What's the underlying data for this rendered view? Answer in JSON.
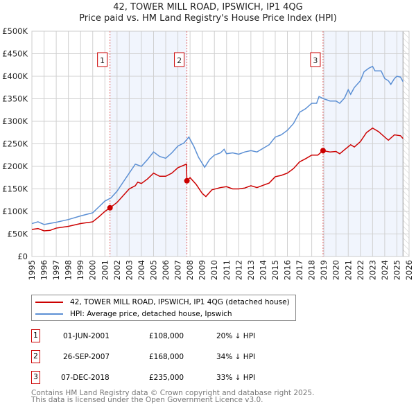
{
  "chart_data": {
    "type": "line",
    "title": "42, TOWER MILL ROAD, IPSWICH, IP1 4QG",
    "subtitle": "Price paid vs. HM Land Registry's House Price Index (HPI)",
    "xlim": [
      1995,
      2026
    ],
    "ylim": [
      0,
      500000
    ],
    "x_ticks": [
      "1995",
      "1996",
      "1997",
      "1998",
      "1999",
      "2000",
      "2001",
      "2002",
      "2003",
      "2004",
      "2005",
      "2006",
      "2007",
      "2008",
      "2009",
      "2010",
      "2011",
      "2012",
      "2013",
      "2014",
      "2015",
      "2016",
      "2017",
      "2018",
      "2019",
      "2020",
      "2021",
      "2022",
      "2023",
      "2024",
      "2025",
      "2026"
    ],
    "y_ticks": [
      {
        "v": 0,
        "label": "£0"
      },
      {
        "v": 50000,
        "label": "£50K"
      },
      {
        "v": 100000,
        "label": "£100K"
      },
      {
        "v": 150000,
        "label": "£150K"
      },
      {
        "v": 200000,
        "label": "£200K"
      },
      {
        "v": 250000,
        "label": "£250K"
      },
      {
        "v": 300000,
        "label": "£300K"
      },
      {
        "v": 350000,
        "label": "£350K"
      },
      {
        "v": 400000,
        "label": "£400K"
      },
      {
        "v": 450000,
        "label": "£450K"
      },
      {
        "v": 500000,
        "label": "£500K"
      }
    ],
    "grid": true,
    "series": [
      {
        "name": "42, TOWER MILL ROAD, IPSWICH, IP1 4QG (detached house)",
        "color": "#cc0000",
        "points": [
          [
            1995,
            60
          ],
          [
            1995.5,
            62
          ],
          [
            1996,
            57
          ],
          [
            1996.5,
            58
          ],
          [
            1997,
            63
          ],
          [
            1998,
            67
          ],
          [
            1999,
            73
          ],
          [
            2000,
            77
          ],
          [
            2000.5,
            88
          ],
          [
            2001,
            100
          ],
          [
            2001.42,
            108
          ],
          [
            2002,
            120
          ],
          [
            2002.5,
            135
          ],
          [
            2003,
            150
          ],
          [
            2003.5,
            157
          ],
          [
            2003.7,
            165
          ],
          [
            2004,
            162
          ],
          [
            2004.5,
            172
          ],
          [
            2005,
            185
          ],
          [
            2005.5,
            178
          ],
          [
            2006,
            178
          ],
          [
            2006.5,
            185
          ],
          [
            2007,
            197
          ],
          [
            2007.7,
            205
          ],
          [
            2007.74,
            168
          ],
          [
            2008,
            175
          ],
          [
            2008.5,
            160
          ],
          [
            2009,
            140
          ],
          [
            2009.3,
            133
          ],
          [
            2009.8,
            148
          ],
          [
            2010.5,
            153
          ],
          [
            2011,
            155
          ],
          [
            2011.5,
            150
          ],
          [
            2012,
            150
          ],
          [
            2012.5,
            152
          ],
          [
            2013,
            157
          ],
          [
            2013.5,
            153
          ],
          [
            2014,
            158
          ],
          [
            2014.5,
            163
          ],
          [
            2015,
            177
          ],
          [
            2015.5,
            180
          ],
          [
            2016,
            185
          ],
          [
            2016.5,
            195
          ],
          [
            2017,
            210
          ],
          [
            2017.5,
            217
          ],
          [
            2018,
            225
          ],
          [
            2018.5,
            225
          ],
          [
            2018.93,
            235
          ],
          [
            2019.5,
            232
          ],
          [
            2020,
            233
          ],
          [
            2020.3,
            228
          ],
          [
            2020.7,
            237
          ],
          [
            2021.2,
            248
          ],
          [
            2021.5,
            243
          ],
          [
            2022,
            255
          ],
          [
            2022.5,
            275
          ],
          [
            2023,
            285
          ],
          [
            2023.5,
            277
          ],
          [
            2024,
            265
          ],
          [
            2024.3,
            258
          ],
          [
            2024.8,
            270
          ],
          [
            2025.3,
            268
          ],
          [
            2025.5,
            262
          ]
        ]
      },
      {
        "name": "HPI: Average price, detached house, Ipswich",
        "color": "#5b8fd4",
        "points": [
          [
            1995,
            73
          ],
          [
            1995.5,
            77
          ],
          [
            1996,
            71
          ],
          [
            1997,
            76
          ],
          [
            1998,
            82
          ],
          [
            1999,
            90
          ],
          [
            2000,
            97
          ],
          [
            2000.5,
            110
          ],
          [
            2001,
            123
          ],
          [
            2001.5,
            130
          ],
          [
            2002,
            145
          ],
          [
            2002.5,
            165
          ],
          [
            2003,
            185
          ],
          [
            2003.5,
            205
          ],
          [
            2004,
            200
          ],
          [
            2004.5,
            215
          ],
          [
            2005,
            232
          ],
          [
            2005.5,
            222
          ],
          [
            2006,
            218
          ],
          [
            2006.5,
            230
          ],
          [
            2007,
            245
          ],
          [
            2007.5,
            252
          ],
          [
            2007.9,
            265
          ],
          [
            2008.3,
            245
          ],
          [
            2008.7,
            220
          ],
          [
            2009.2,
            198
          ],
          [
            2009.6,
            215
          ],
          [
            2010,
            225
          ],
          [
            2010.5,
            230
          ],
          [
            2010.8,
            238
          ],
          [
            2011,
            228
          ],
          [
            2011.5,
            230
          ],
          [
            2012,
            227
          ],
          [
            2012.5,
            232
          ],
          [
            2013,
            235
          ],
          [
            2013.5,
            232
          ],
          [
            2014,
            240
          ],
          [
            2014.5,
            248
          ],
          [
            2015,
            265
          ],
          [
            2015.5,
            270
          ],
          [
            2016,
            280
          ],
          [
            2016.5,
            295
          ],
          [
            2017,
            320
          ],
          [
            2017.5,
            328
          ],
          [
            2018,
            340
          ],
          [
            2018.4,
            340
          ],
          [
            2018.6,
            355
          ],
          [
            2019,
            350
          ],
          [
            2019.5,
            345
          ],
          [
            2020,
            345
          ],
          [
            2020.3,
            340
          ],
          [
            2020.7,
            352
          ],
          [
            2021,
            370
          ],
          [
            2021.2,
            360
          ],
          [
            2021.5,
            375
          ],
          [
            2022,
            390
          ],
          [
            2022.3,
            410
          ],
          [
            2022.7,
            418
          ],
          [
            2023,
            422
          ],
          [
            2023.2,
            412
          ],
          [
            2023.7,
            412
          ],
          [
            2024,
            395
          ],
          [
            2024.3,
            390
          ],
          [
            2024.5,
            382
          ],
          [
            2024.8,
            395
          ],
          [
            2025,
            400
          ],
          [
            2025.3,
            398
          ],
          [
            2025.5,
            388
          ]
        ]
      }
    ],
    "sales": [
      {
        "n": "1",
        "x": 2001.42,
        "y": 108
      },
      {
        "n": "2",
        "x": 2007.74,
        "y": 168
      },
      {
        "n": "3",
        "x": 2018.93,
        "y": 235
      }
    ],
    "shaded": [
      [
        2001.42,
        2007.74
      ],
      [
        2018.93,
        2025.5
      ]
    ],
    "data_end": 2025.5,
    "value_units": "thousands GBP"
  },
  "legend": {
    "items": [
      {
        "label": "42, TOWER MILL ROAD, IPSWICH, IP1 4QG (detached house)",
        "color": "#cc0000"
      },
      {
        "label": "HPI: Average price, detached house, Ipswich",
        "color": "#5b8fd4"
      }
    ]
  },
  "table": [
    {
      "n": "1",
      "date": "01-JUN-2001",
      "price": "£108,000",
      "hpi": "20% ↓ HPI"
    },
    {
      "n": "2",
      "date": "26-SEP-2007",
      "price": "£168,000",
      "hpi": "34% ↓ HPI"
    },
    {
      "n": "3",
      "date": "07-DEC-2018",
      "price": "£235,000",
      "hpi": "33% ↓ HPI"
    }
  ],
  "footer": {
    "line1": "Contains HM Land Registry data © Crown copyright and database right 2025.",
    "line2": "This data is licensed under the Open Government Licence v3.0."
  }
}
